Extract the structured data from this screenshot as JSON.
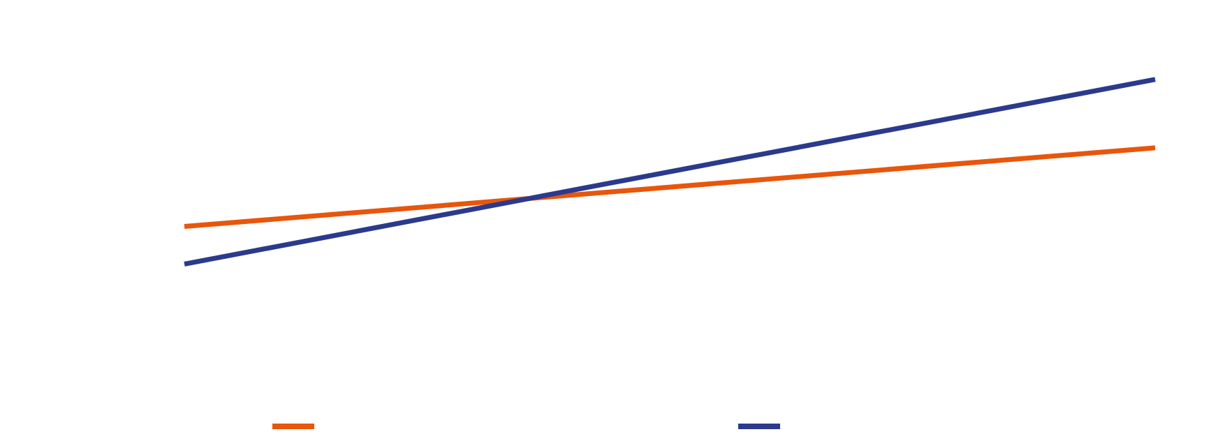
{
  "chart_data": {
    "type": "line",
    "title": "",
    "xlabel": "",
    "ylabel": "",
    "x": [
      0,
      1
    ],
    "xlim": [
      0,
      1
    ],
    "ylim": [
      0,
      1
    ],
    "grid": false,
    "legend_position": "bottom",
    "series": [
      {
        "name": "",
        "color": "#E8560C",
        "values": [
          0.45,
          0.68
        ]
      },
      {
        "name": "",
        "color": "#2B3A8C",
        "values": [
          0.34,
          0.88
        ]
      }
    ]
  }
}
